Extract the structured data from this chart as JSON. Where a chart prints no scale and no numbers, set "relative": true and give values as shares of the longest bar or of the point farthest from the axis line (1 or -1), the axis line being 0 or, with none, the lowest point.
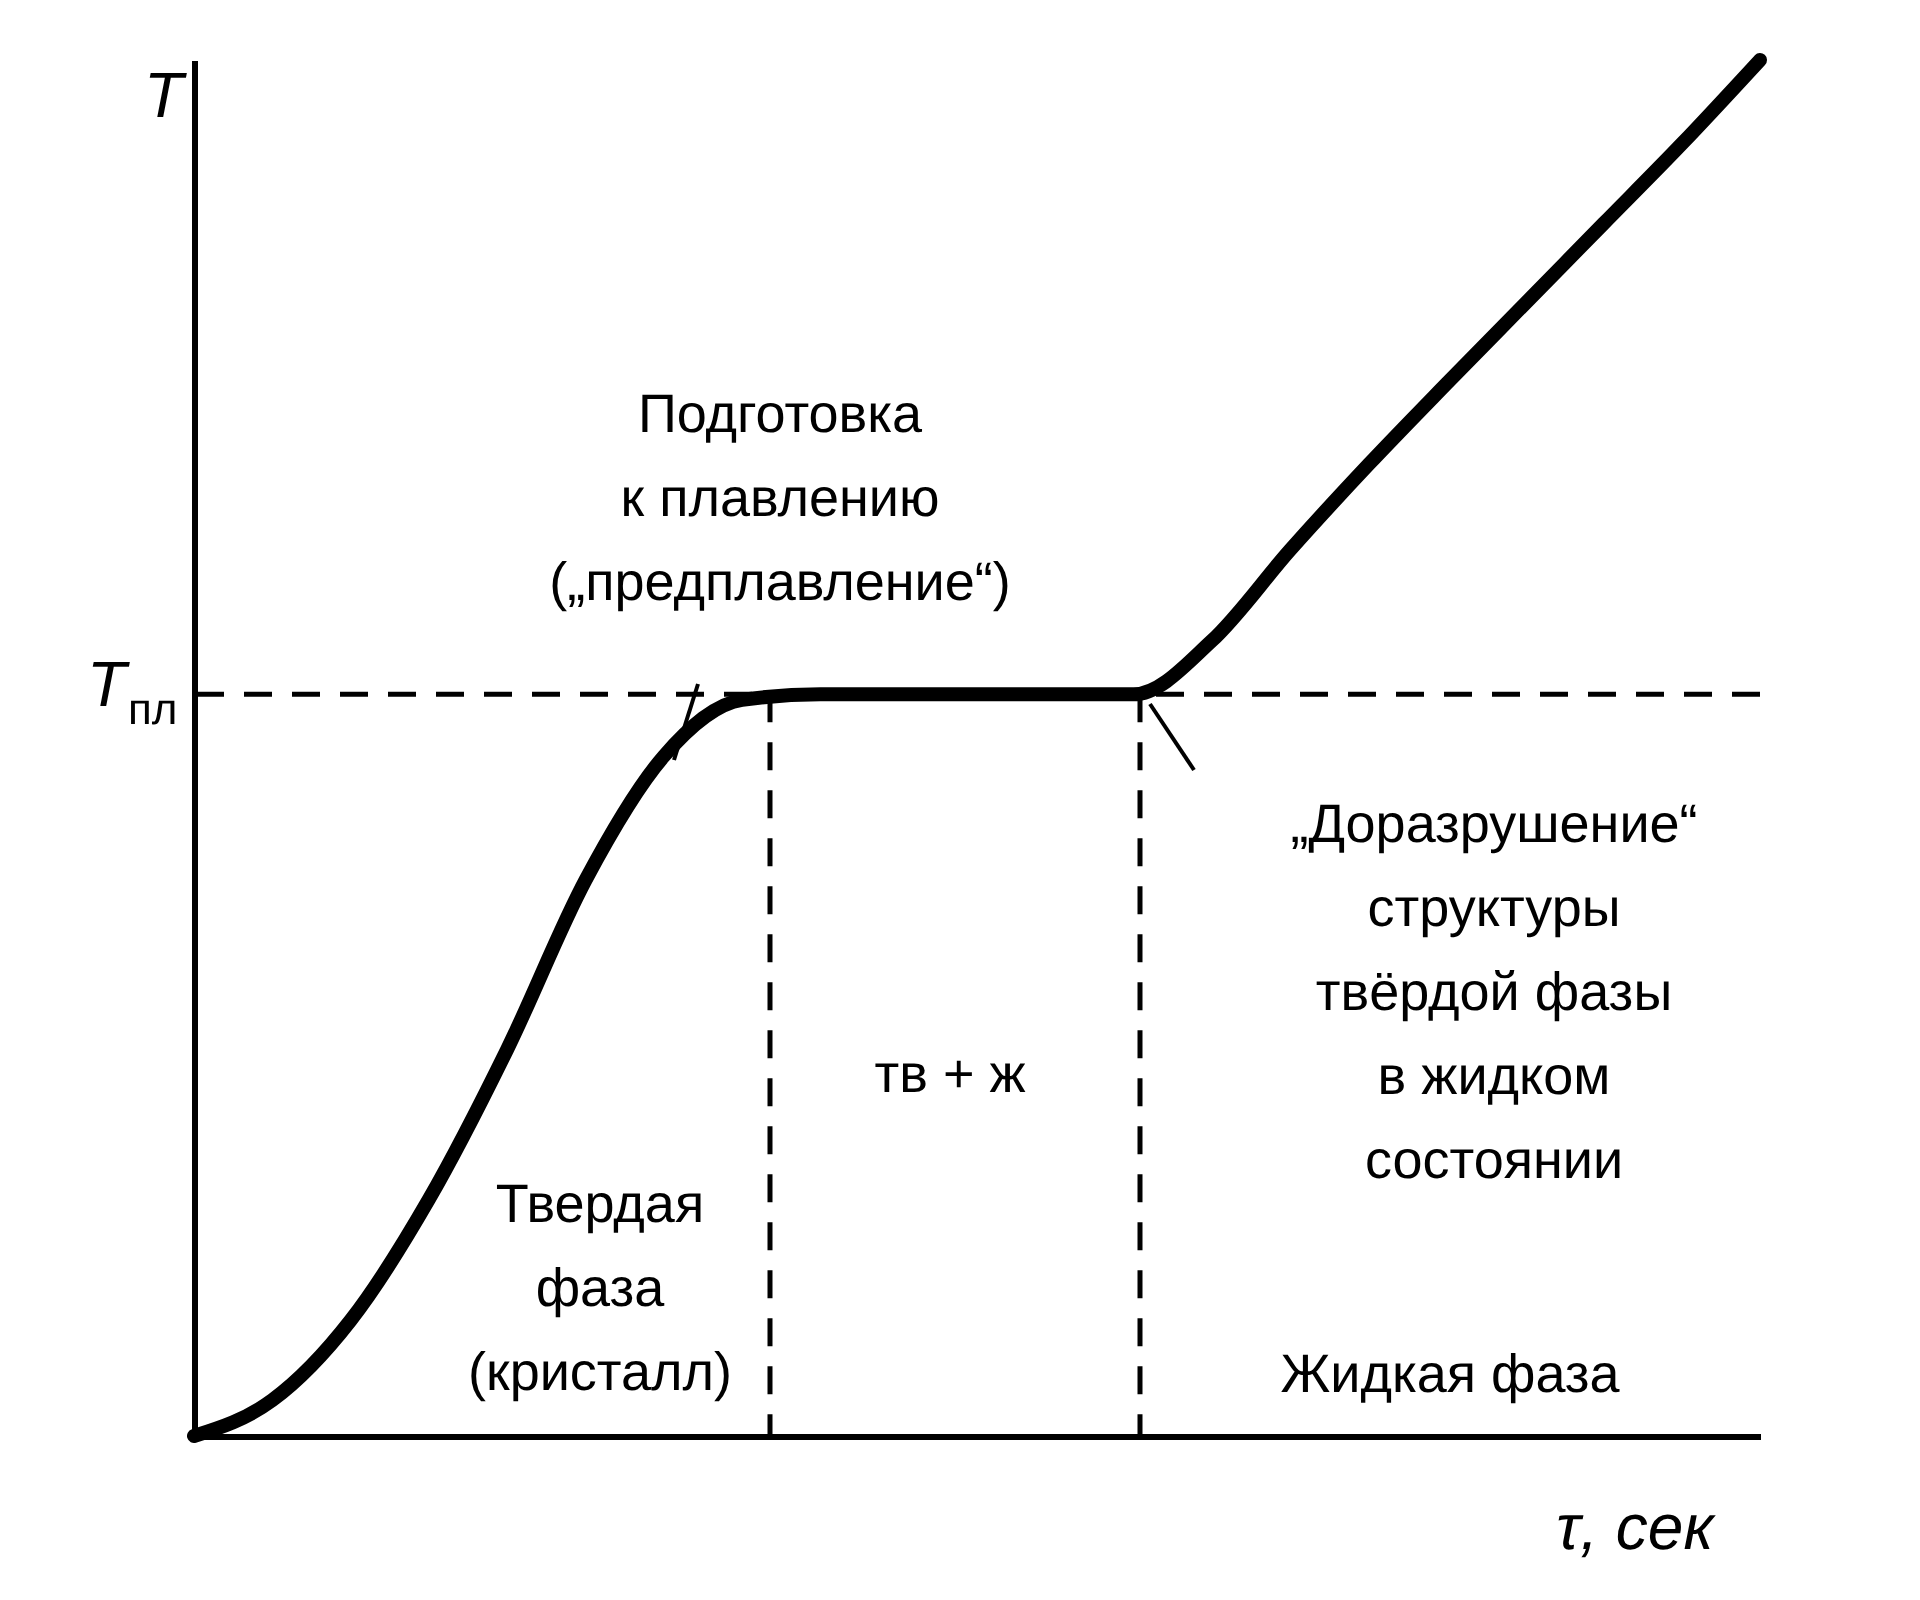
{
  "chart_data": {
    "type": "line",
    "relative": true,
    "xlabel": "τ, сек",
    "ylabel": "T",
    "categories": [
      null,
      null,
      null,
      null,
      null,
      null,
      null,
      null,
      null,
      null,
      null,
      null,
      null,
      null,
      null,
      null,
      null,
      null,
      null,
      null,
      null
    ],
    "series": [
      {
        "color": "#000000",
        "values": [
          0,
          0.026,
          0.084,
          0.172,
          0.281,
          0.404,
          0.494,
          0.535,
          0.539,
          0.539,
          0.539,
          0.539,
          0.539,
          0.578,
          0.644,
          0.706,
          0.765,
          0.823,
          0.881,
          0.939,
          1
        ]
      }
    ],
    "ref_lines": [
      {
        "axis": "y",
        "value": 0.539,
        "label": "T$_{пл}$",
        "line_style": "dashed"
      }
    ],
    "annotations": [
      "Подготовка\nк плавлению\n(„предплавление“)",
      "„Доразрушение“\nструктуры\nтвёрдой фазы\nв жидком\nсостоянии",
      "Твердая\nфаза\n(кристалл)",
      "тв + ж",
      "Жидкая фаза"
    ]
  }
}
